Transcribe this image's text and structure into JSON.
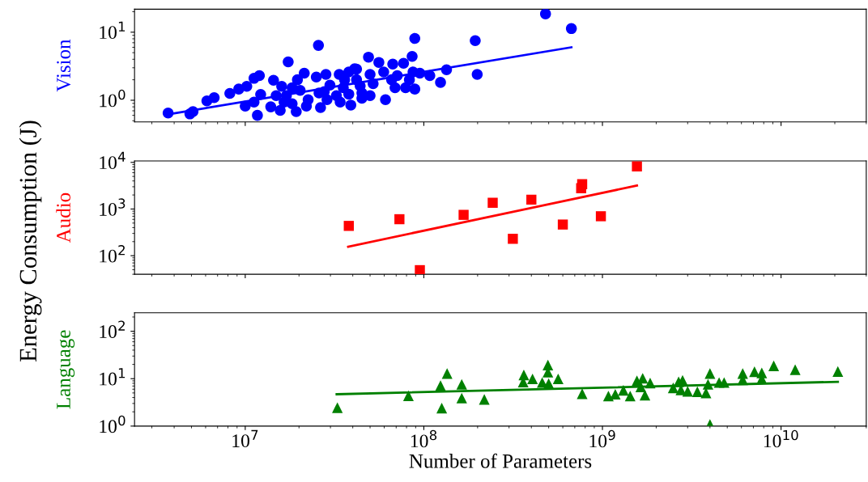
{
  "chart_data": [
    {
      "type": "scatter",
      "ylabel": "Vision",
      "xlim": [
        2400000,
        30000000000
      ],
      "xticks": [
        {
          "value": 10000000,
          "label": null
        },
        {
          "value": 100000000,
          "label": null
        },
        {
          "value": 1000000000,
          "label": null
        },
        {
          "value": 10000000000,
          "label": null
        }
      ],
      "ylim": [
        0.48,
        21.8
      ],
      "yticks": [
        {
          "value": 1,
          "label": "10$^{0}$"
        },
        {
          "value": 10,
          "label": "10$^{1}$"
        }
      ],
      "log": "xy",
      "tick_labels": "y",
      "series": [
        {
          "type": "scatter",
          "marker": "circle",
          "color": "#0000ff",
          "x": [
            3700000,
            4900000,
            5100000,
            6100000,
            6700000,
            8200000,
            9200000,
            10200000,
            10000000,
            11200000,
            12000000,
            12200000,
            11700000,
            11200000,
            14400000,
            13900000,
            16000000,
            15700000,
            17000000,
            17400000,
            18300000,
            19600000,
            21400000,
            20300000,
            22000000,
            25700000,
            25000000,
            25900000,
            28300000,
            29800000,
            28700000,
            33600000,
            35400000,
            38000000,
            41000000,
            39000000,
            42000000,
            45000000,
            49000000,
            50000000,
            50000000,
            42000000,
            56000000,
            59600000,
            45000000,
            61000000,
            67000000,
            77000000,
            69000000,
            66000000,
            89000000,
            86000000,
            87000000,
            89000000,
            95000000,
            108000000,
            124000000,
            134000000,
            194000000,
            199000000,
            480000000,
            670000000,
            14900000,
            18300000,
            22500000,
            27700000,
            34000000,
            44000000,
            52000000,
            16500000,
            26400000,
            32400000,
            36000000,
            71000000,
            79000000,
            83000000,
            19300000,
            38000000
          ],
          "values": [
            0.65,
            0.63,
            0.68,
            0.98,
            1.09,
            1.26,
            1.46,
            1.6,
            0.82,
            2.1,
            2.3,
            1.22,
            0.6,
            0.94,
            1.97,
            0.8,
            1.6,
            0.71,
            1.17,
            3.66,
            0.89,
            2.0,
            2.5,
            1.4,
            0.82,
            6.4,
            2.19,
            1.28,
            2.4,
            1.67,
            1.02,
            2.4,
            1.53,
            2.6,
            2.9,
            0.85,
            2.0,
            1.28,
            4.3,
            2.4,
            1.17,
            2.87,
            3.6,
            2.6,
            1.07,
            1.02,
            3.4,
            3.5,
            1.53,
            2.0,
            8.1,
            4.4,
            2.6,
            1.46,
            2.5,
            2.3,
            1.83,
            2.8,
            7.5,
            2.4,
            18.6,
            11.3,
            1.17,
            1.53,
            1.02,
            1.34,
            0.94,
            1.62,
            1.75,
            0.94,
            0.78,
            1.17,
            2.0,
            2.3,
            1.53,
            2.0,
            0.68,
            1.23
          ]
        },
        {
          "type": "line",
          "color": "#0000ff",
          "x": [
            3700000,
            670000000
          ],
          "values": [
            0.62,
            6.0
          ]
        }
      ]
    },
    {
      "type": "scatter",
      "ylabel": "Audio",
      "annotations": [
        "Energy Consumption (J)"
      ],
      "xlim": [
        2400000,
        30000000000
      ],
      "xticks": [
        {
          "value": 10000000,
          "label": null
        },
        {
          "value": 100000000,
          "label": null
        },
        {
          "value": 1000000000,
          "label": null
        },
        {
          "value": 10000000000,
          "label": null
        }
      ],
      "ylim": [
        40,
        10700
      ],
      "yticks": [
        {
          "value": 100,
          "label": "10$^{2}$"
        },
        {
          "value": 1000,
          "label": "10$^{3}$"
        },
        {
          "value": 10000,
          "label": "10$^{4}$"
        }
      ],
      "log": "xy",
      "tick_labels": "y",
      "series": [
        {
          "type": "scatter",
          "marker": "square",
          "color": "#ff0000",
          "x": [
            38000000,
            73000000,
            95000000,
            167000000,
            243000000,
            315000000,
            400000000,
            600000000,
            760000000,
            770000000,
            980000000,
            1560000000
          ],
          "values": [
            435,
            605,
            49,
            750,
            1360,
            230,
            1590,
            465,
            2790,
            3400,
            700,
            8170
          ]
        },
        {
          "type": "line",
          "color": "#ff0000",
          "x": [
            37700000,
            1560000000
          ],
          "values": [
            156,
            3180
          ]
        }
      ]
    },
    {
      "type": "scatter",
      "ylabel": "Language",
      "xlabel": "Number of Parameters",
      "xlim": [
        2400000,
        30000000000
      ],
      "xticks": [
        {
          "value": 10000000,
          "label": "10$^{7}$"
        },
        {
          "value": 100000000,
          "label": "10$^{8}$"
        },
        {
          "value": 1000000000,
          "label": "10$^{9}$"
        },
        {
          "value": 10000000000,
          "label": "10$^{10}$"
        }
      ],
      "ylim": [
        1,
        245
      ],
      "yticks": [
        {
          "value": 1,
          "label": "10$^{0}$"
        },
        {
          "value": 10,
          "label": "10$^{1}$"
        },
        {
          "value": 100,
          "label": "10$^{2}$"
        }
      ],
      "log": "xy",
      "series": [
        {
          "type": "scatter",
          "marker": "triangle",
          "color": "#008000",
          "x": [
            32800000,
            82000000,
            135000000,
            124000000,
            126000000,
            163000000,
            163000000,
            218000000,
            363000000,
            360000000,
            406000000,
            495000000,
            495000000,
            460000000,
            500000000,
            565000000,
            770000000,
            1080000000,
            1180000000,
            1310000000,
            1430000000,
            1560000000,
            1680000000,
            1640000000,
            1730000000,
            1850000000,
            2490000000,
            2670000000,
            2810000000,
            2750000000,
            3000000000,
            3400000000,
            3800000000,
            4000000000,
            3900000000,
            4000000000,
            4500000000,
            4800000000,
            6100000000,
            6100000000,
            7100000000,
            7800000000,
            7800000000,
            9100000000,
            12000000000,
            20800000000
          ],
          "values": [
            2.45,
            4.35,
            12.8,
            7.1,
            2.4,
            7.6,
            3.9,
            3.65,
            12.0,
            8.5,
            9.9,
            19.4,
            13.7,
            8.3,
            7.9,
            9.9,
            4.8,
            4.3,
            4.7,
            5.7,
            4.3,
            9.0,
            10.2,
            6.7,
            4.5,
            8.1,
            6.4,
            8.6,
            9.2,
            5.8,
            5.4,
            5.3,
            5.0,
            12.8,
            7.6,
            1.08,
            8.3,
            8.3,
            12.8,
            9.5,
            14.0,
            13.2,
            9.9,
            18.6,
            15.5,
            14.2
          ]
        },
        {
          "type": "line",
          "color": "#008000",
          "x": [
            32500000,
            20800000000
          ],
          "values": [
            4.7,
            8.6
          ]
        }
      ]
    }
  ]
}
